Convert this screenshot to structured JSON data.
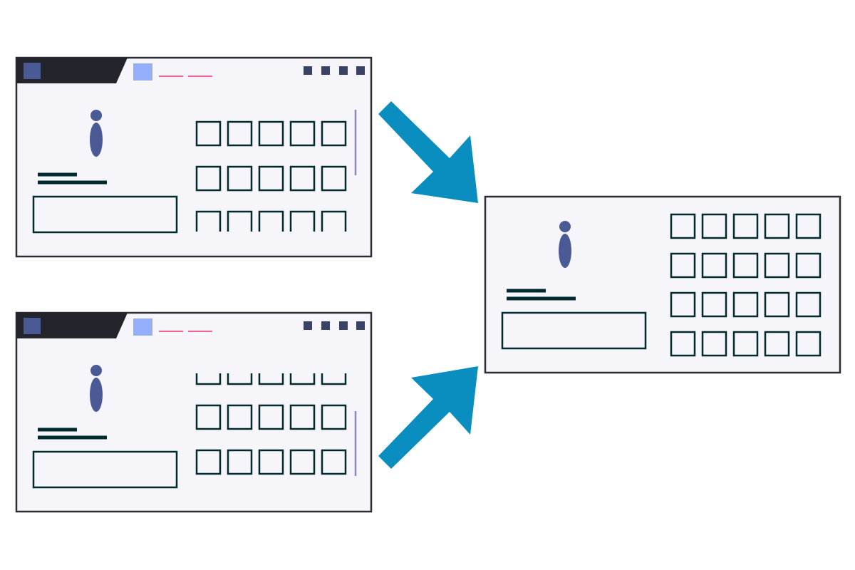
{
  "colors": {
    "background": "#ffffff",
    "frame_fill": "#f5f5fa",
    "frame_border": "#2c2c33",
    "titlebar": "#24242c",
    "titlebar_square": "#4a5a94",
    "accent_square": "#94aefc",
    "accent_dash": "#f06493",
    "window_dots": "#3a4266",
    "person": "#4a5a94",
    "text_lines": "#002a2e",
    "box_outline": "#002a2e",
    "scrollbar": "#8a86c8",
    "arrow": "#0a8ec0"
  },
  "icons": {
    "person": "info-person-icon",
    "arrow": "arrow-icon",
    "menu_square": "app-square-icon"
  },
  "panels": [
    {
      "id": "top-browser",
      "kind": "browser-window",
      "grid_rows": 3,
      "grid_cols": 5,
      "scroll_position": "top"
    },
    {
      "id": "bottom-browser",
      "kind": "browser-window",
      "grid_rows": 3,
      "grid_cols": 5,
      "scroll_position": "bottom"
    },
    {
      "id": "merged-page",
      "kind": "full-page",
      "grid_rows": 4,
      "grid_cols": 5,
      "scroll_position": "none"
    }
  ],
  "arrows": [
    {
      "from": "top-browser",
      "to": "merged-page"
    },
    {
      "from": "bottom-browser",
      "to": "merged-page"
    }
  ]
}
